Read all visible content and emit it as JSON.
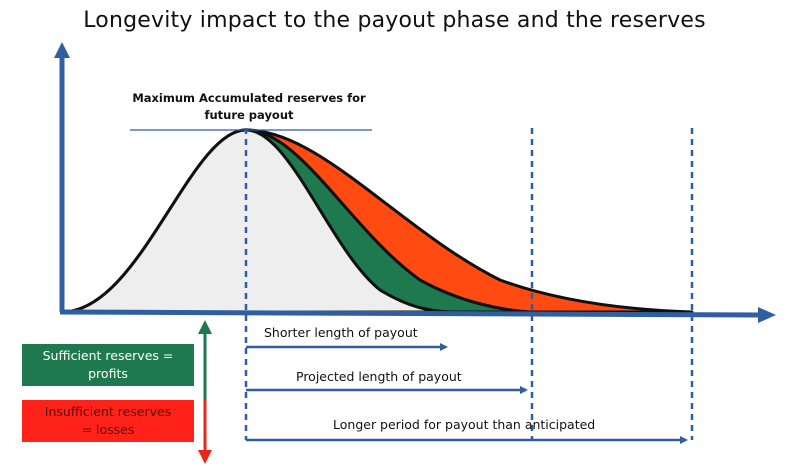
{
  "title": "Longevity impact to the payout phase and the reserves",
  "peak_label_line1": "Maximum Accumulated reserves for",
  "peak_label_line2": "future payout",
  "arrows": {
    "shorter": "Shorter length of payout",
    "projected": "Projected length of payout",
    "longer": "Longer period for payout than anticipated"
  },
  "legend": {
    "sufficient_line1": "Sufficient reserves =",
    "sufficient_line2": "profits",
    "insufficient_line1": "Insufficient reserves",
    "insufficient_line2": "= losses"
  },
  "colors": {
    "axis": "#2f5fa0",
    "base_fill": "#eeeeee",
    "green_fill": "#1e7a4e",
    "red_fill": "#ff4a12",
    "curve_stroke": "#111111",
    "legend_green": "#1e7a4e",
    "legend_red": "#ff1a10"
  }
}
